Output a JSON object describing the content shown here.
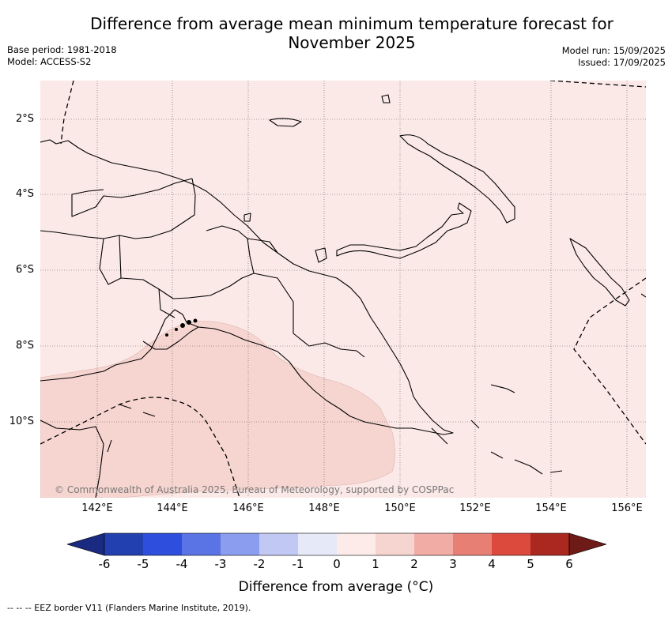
{
  "title": "Difference from average mean minimum temperature forecast for November 2025",
  "meta": {
    "base_period": "Base period: 1981-2018",
    "model": "Model: ACCESS-S2",
    "model_run": "Model run: 15/09/2025",
    "issued": "Issued: 17/09/2025"
  },
  "map": {
    "latitude_labels": [
      "2°S",
      "4°S",
      "6°S",
      "8°S",
      "10°S"
    ],
    "longitude_labels": [
      "142°E",
      "144°E",
      "146°E",
      "148°E",
      "150°E",
      "152°E",
      "154°E",
      "156°E"
    ],
    "copyright": "© Commonwealth of Australia 2025, Bureau of Meteorology, supported by COSPPac",
    "base_fill_color": "#fbe9e7",
    "warm_fill_color": "#f6d5d0"
  },
  "colorbar": {
    "tick_labels": [
      "-6",
      "-5",
      "-4",
      "-3",
      "-2",
      "-1",
      "0",
      "1",
      "2",
      "3",
      "4",
      "5",
      "6"
    ],
    "colors": [
      "#1a2a80",
      "#2340b0",
      "#2e4fdd",
      "#5a74e6",
      "#8a9dee",
      "#c0c8f3",
      "#e6eaf8",
      "#fcebe8",
      "#f6d5d0",
      "#f0aca5",
      "#e87f75",
      "#dc4a3e",
      "#ab2820",
      "#6e1a16"
    ],
    "label": "Difference from average (°C)"
  },
  "legend": {
    "eez": "-- -- -- EEZ border V11 (Flanders Marine Institute, 2019)."
  }
}
